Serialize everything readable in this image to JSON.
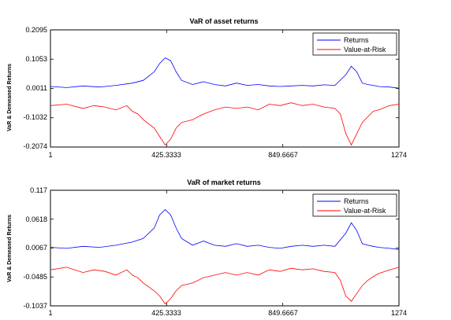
{
  "chart_data": [
    {
      "type": "line",
      "title": "VaR of asset returns",
      "xlabel": "",
      "ylabel": "VaR & Demeaned Returns",
      "xlim": [
        1,
        1274
      ],
      "ylim": [
        -0.2074,
        0.2095
      ],
      "xticks": [
        "1",
        "425.3333",
        "849.6667",
        "1274"
      ],
      "yticks": [
        "0.2095",
        "0.1053",
        "0.0011",
        "-0.1032",
        "-0.2074"
      ],
      "legend": {
        "placement": "top-right",
        "entries": [
          "Returns",
          "Value-at-Risk"
        ]
      },
      "series": [
        {
          "name": "Returns",
          "color": "#0000ff",
          "x": [
            1,
            60,
            120,
            180,
            240,
            300,
            340,
            380,
            400,
            420,
            440,
            460,
            480,
            520,
            560,
            600,
            640,
            680,
            720,
            760,
            800,
            840,
            880,
            920,
            960,
            1000,
            1040,
            1080,
            1100,
            1120,
            1140,
            1160,
            1180,
            1200,
            1240,
            1274
          ],
          "y": [
            0.008,
            0.004,
            0.01,
            0.006,
            0.012,
            0.02,
            0.03,
            0.06,
            0.09,
            0.11,
            0.1,
            0.06,
            0.03,
            0.015,
            0.025,
            0.015,
            0.01,
            0.02,
            0.012,
            0.015,
            0.01,
            0.008,
            0.01,
            0.012,
            0.01,
            0.014,
            0.012,
            0.05,
            0.08,
            0.06,
            0.02,
            0.015,
            0.012,
            0.008,
            0.006,
            0.002
          ]
        },
        {
          "name": "Value-at-Risk",
          "color": "#ff0000",
          "x": [
            1,
            60,
            120,
            160,
            200,
            240,
            280,
            300,
            320,
            340,
            380,
            400,
            420,
            440,
            460,
            480,
            520,
            560,
            600,
            640,
            680,
            720,
            760,
            800,
            840,
            880,
            920,
            960,
            1000,
            1040,
            1060,
            1080,
            1100,
            1120,
            1140,
            1160,
            1180,
            1200,
            1240,
            1274
          ],
          "y": [
            -0.06,
            -0.055,
            -0.07,
            -0.06,
            -0.065,
            -0.075,
            -0.06,
            -0.08,
            -0.09,
            -0.11,
            -0.14,
            -0.17,
            -0.2,
            -0.18,
            -0.14,
            -0.12,
            -0.11,
            -0.09,
            -0.075,
            -0.065,
            -0.07,
            -0.065,
            -0.075,
            -0.055,
            -0.06,
            -0.05,
            -0.06,
            -0.055,
            -0.065,
            -0.07,
            -0.09,
            -0.16,
            -0.2,
            -0.16,
            -0.12,
            -0.1,
            -0.08,
            -0.075,
            -0.06,
            -0.055
          ]
        }
      ]
    },
    {
      "type": "line",
      "title": "VaR of market returns",
      "xlabel": "",
      "ylabel": "VaR & Demeaned Returns",
      "xlim": [
        1,
        1274
      ],
      "ylim": [
        -0.1037,
        0.117
      ],
      "xticks": [
        "1",
        "425.3333",
        "849.6667",
        "1274"
      ],
      "yticks": [
        "0.117",
        "0.0618",
        "0.0067",
        "-0.0485",
        "-0.1037"
      ],
      "legend": {
        "placement": "top-right",
        "entries": [
          "Returns",
          "Value-at-Risk"
        ]
      },
      "series": [
        {
          "name": "Returns",
          "color": "#0000ff",
          "x": [
            1,
            60,
            120,
            180,
            240,
            300,
            340,
            380,
            400,
            420,
            440,
            460,
            480,
            520,
            560,
            600,
            640,
            680,
            720,
            760,
            800,
            840,
            880,
            920,
            960,
            1000,
            1040,
            1080,
            1100,
            1120,
            1140,
            1160,
            1180,
            1200,
            1240,
            1274
          ],
          "y": [
            0.008,
            0.006,
            0.01,
            0.008,
            0.012,
            0.018,
            0.025,
            0.045,
            0.07,
            0.08,
            0.07,
            0.045,
            0.025,
            0.012,
            0.02,
            0.012,
            0.01,
            0.015,
            0.01,
            0.012,
            0.008,
            0.006,
            0.01,
            0.012,
            0.01,
            0.012,
            0.01,
            0.035,
            0.055,
            0.04,
            0.015,
            0.012,
            0.01,
            0.008,
            0.006,
            0.004
          ]
        },
        {
          "name": "Value-at-Risk",
          "color": "#ff0000",
          "x": [
            1,
            60,
            120,
            160,
            200,
            240,
            280,
            300,
            320,
            340,
            380,
            400,
            420,
            440,
            460,
            480,
            520,
            560,
            600,
            640,
            680,
            720,
            760,
            800,
            840,
            880,
            920,
            960,
            1000,
            1040,
            1060,
            1080,
            1100,
            1120,
            1140,
            1160,
            1180,
            1200,
            1240,
            1274
          ],
          "y": [
            -0.035,
            -0.03,
            -0.04,
            -0.035,
            -0.038,
            -0.045,
            -0.035,
            -0.045,
            -0.05,
            -0.06,
            -0.075,
            -0.085,
            -0.1,
            -0.09,
            -0.075,
            -0.065,
            -0.06,
            -0.05,
            -0.045,
            -0.04,
            -0.045,
            -0.04,
            -0.045,
            -0.035,
            -0.038,
            -0.032,
            -0.035,
            -0.033,
            -0.038,
            -0.04,
            -0.055,
            -0.085,
            -0.095,
            -0.08,
            -0.065,
            -0.055,
            -0.048,
            -0.042,
            -0.035,
            -0.03
          ]
        }
      ]
    }
  ]
}
